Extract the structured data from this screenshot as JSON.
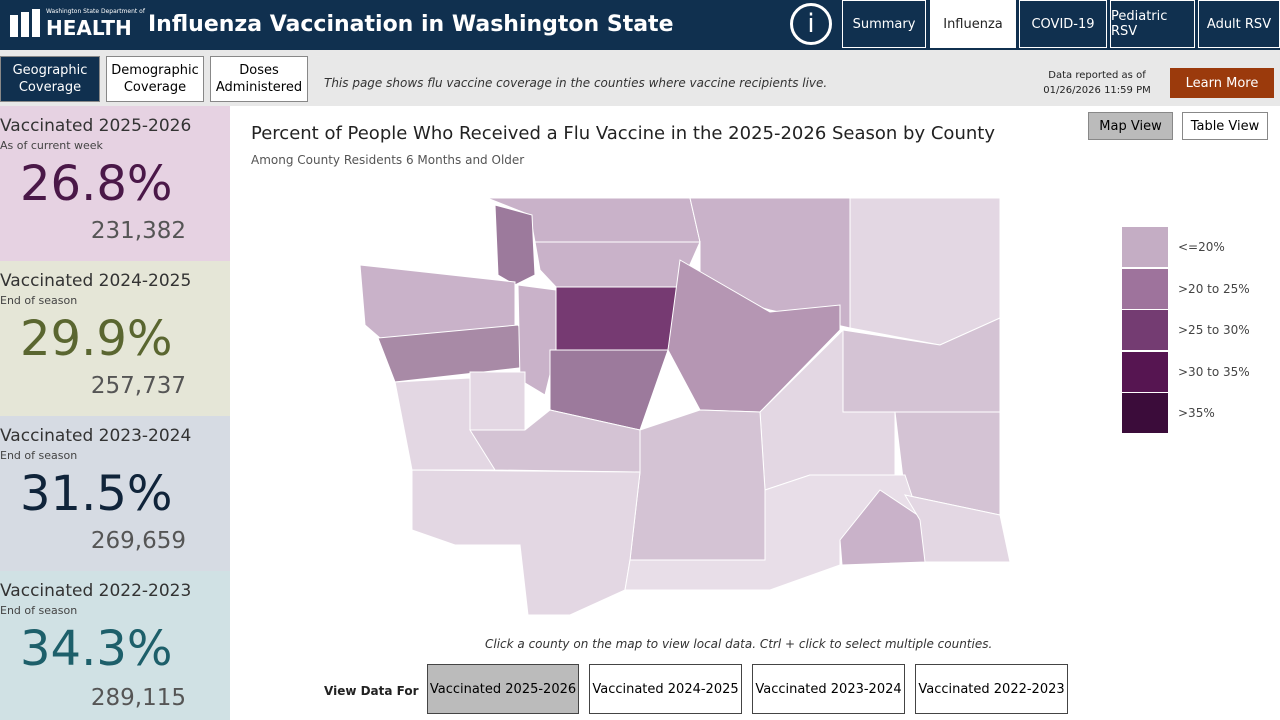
{
  "header": {
    "logo_small": "Washington State Department of",
    "logo": "HEALTH",
    "title": "Influenza Vaccination in Washington State",
    "info": "i",
    "tabs": [
      "Summary",
      "Influenza",
      "COVID-19",
      "Pediatric RSV",
      "Adult RSV"
    ]
  },
  "subnav": {
    "buttons": [
      "Geographic Coverage",
      "Demographic Coverage",
      "Doses Administered"
    ],
    "description": "This page shows flu vaccine coverage in the counties where vaccine recipients live.",
    "report_label": "Data reported as of",
    "report_date": "01/26/2026 11:59 PM",
    "learn_more": "Learn More"
  },
  "cards": [
    {
      "title": "Vaccinated 2025-2026",
      "subtitle": "As of current week",
      "percent": "26.8%",
      "count": "231,382"
    },
    {
      "title": "Vaccinated 2024-2025",
      "subtitle": "End of season",
      "percent": "29.9%",
      "count": "257,737"
    },
    {
      "title": "Vaccinated 2023-2024",
      "subtitle": "End of season",
      "percent": "31.5%",
      "count": "269,659"
    },
    {
      "title": "Vaccinated 2022-2023",
      "subtitle": "End of season",
      "percent": "34.3%",
      "count": "289,115"
    }
  ],
  "map_panel": {
    "title": "Percent of People Who Received a Flu Vaccine in the 2025-2026 Season by County",
    "subtitle": "Among County Residents 6 Months and Older",
    "view_buttons": [
      "Map View",
      "Table View"
    ],
    "legend": [
      {
        "label": "<=20%",
        "color": "#c4adc4"
      },
      {
        "label": ">20 to 25%",
        "color": "#9e739c"
      },
      {
        "label": ">25 to 30%",
        "color": "#743c72"
      },
      {
        "label": ">30 to 35%",
        "color": "#561551"
      },
      {
        "label": ">35%",
        "color": "#3b0c3a"
      }
    ],
    "hint": "Click a county on the map to view local data. Ctrl + click to select multiple counties.",
    "view_label": "View Data For",
    "season_buttons": [
      "Vaccinated 2025-2026",
      "Vaccinated 2024-2025",
      "Vaccinated 2023-2024",
      "Vaccinated 2022-2023"
    ]
  }
}
